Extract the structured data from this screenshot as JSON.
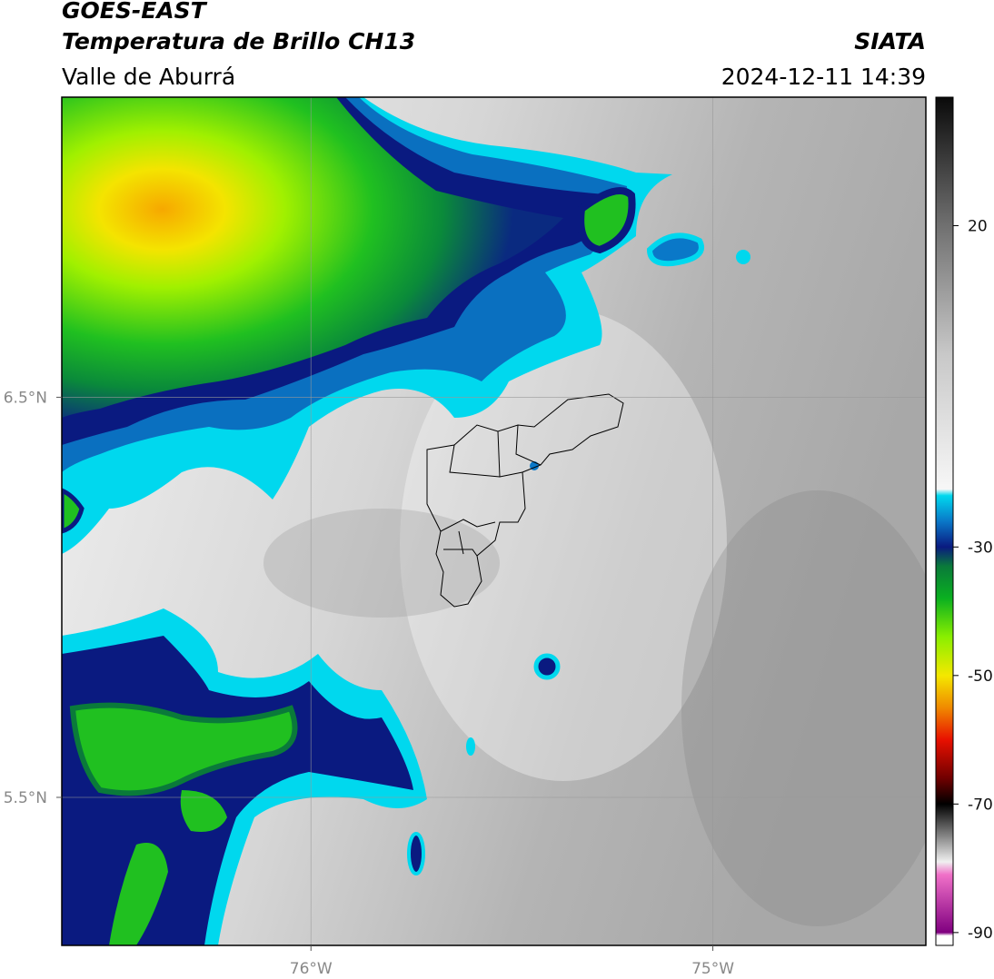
{
  "header": {
    "title": "GOES-EAST",
    "subtitle": "Temperatura de Brillo CH13",
    "region": "Valle de Aburrá",
    "source": "SIATA",
    "timestamp": "2024-12-11 14:39"
  },
  "map": {
    "xlim": [
      -76.62,
      -74.47
    ],
    "ylim": [
      5.13,
      7.25
    ],
    "xticks": [
      {
        "value": -76,
        "label": "76°W"
      },
      {
        "value": -75,
        "label": "75°W"
      }
    ],
    "yticks": [
      {
        "value": 6.5,
        "label": "6.5°N"
      },
      {
        "value": 5.5,
        "label": "5.5°N"
      }
    ],
    "grid": true
  },
  "colorbar": {
    "lim": [
      -92,
      40
    ],
    "ticks": [
      20,
      -30,
      -50,
      -70,
      -90
    ],
    "colormap": [
      {
        "value": 40,
        "color": "#0a0a0a"
      },
      {
        "value": 20,
        "color": "#707070"
      },
      {
        "value": 0,
        "color": "#c8c8c8"
      },
      {
        "value": -21,
        "color": "#f7f7f7"
      },
      {
        "value": -22,
        "color": "#00d8ee"
      },
      {
        "value": -26,
        "color": "#0a78c8"
      },
      {
        "value": -30,
        "color": "#0a1a80"
      },
      {
        "value": -33,
        "color": "#0a7a3a"
      },
      {
        "value": -38,
        "color": "#0ab020"
      },
      {
        "value": -44,
        "color": "#8aef00"
      },
      {
        "value": -50,
        "color": "#f4e800"
      },
      {
        "value": -55,
        "color": "#f08a00"
      },
      {
        "value": -60,
        "color": "#e81000"
      },
      {
        "value": -66,
        "color": "#700000"
      },
      {
        "value": -70,
        "color": "#000000"
      },
      {
        "value": -76,
        "color": "#a0a0a0"
      },
      {
        "value": -79,
        "color": "#f0f0f0"
      },
      {
        "value": -81,
        "color": "#f070c8"
      },
      {
        "value": -90,
        "color": "#800080"
      },
      {
        "value": -90.5,
        "color": "#ffffff"
      },
      {
        "value": -92,
        "color": "#ffffff"
      }
    ]
  }
}
